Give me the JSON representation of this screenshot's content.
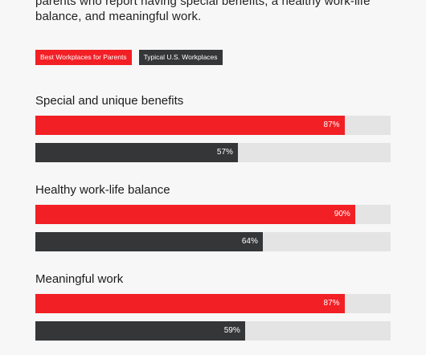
{
  "intro": "parents who report having special benefits, a healthy work-life balance, and meaningful work.",
  "colors": {
    "best": "#f21f25",
    "typical": "#343638",
    "track": "#e4e4e4",
    "background": "#f7f7f7"
  },
  "chart_data": {
    "type": "bar",
    "orientation": "horizontal",
    "unit": "%",
    "xlim": [
      0,
      100
    ],
    "categories": [
      "Special and unique benefits",
      "Healthy work-life balance",
      "Meaningful work"
    ],
    "series": [
      {
        "name": "Best Workplaces for Parents",
        "color": "#f21f25",
        "values": [
          87,
          90,
          87
        ]
      },
      {
        "name": "Typical U.S. Workplaces",
        "color": "#343638",
        "values": [
          57,
          64,
          59
        ]
      }
    ],
    "legend": "top-left",
    "grid": false
  }
}
